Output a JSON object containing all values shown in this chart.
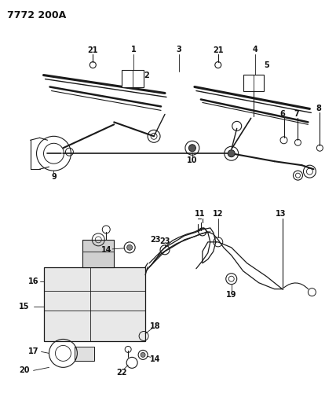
{
  "title": "7772 200A",
  "bg_color": "#ffffff",
  "line_color": "#1a1a1a",
  "text_color": "#111111",
  "title_fontsize": 9,
  "label_fontsize": 7,
  "fig_width": 4.28,
  "fig_height": 5.33,
  "dpi": 100
}
